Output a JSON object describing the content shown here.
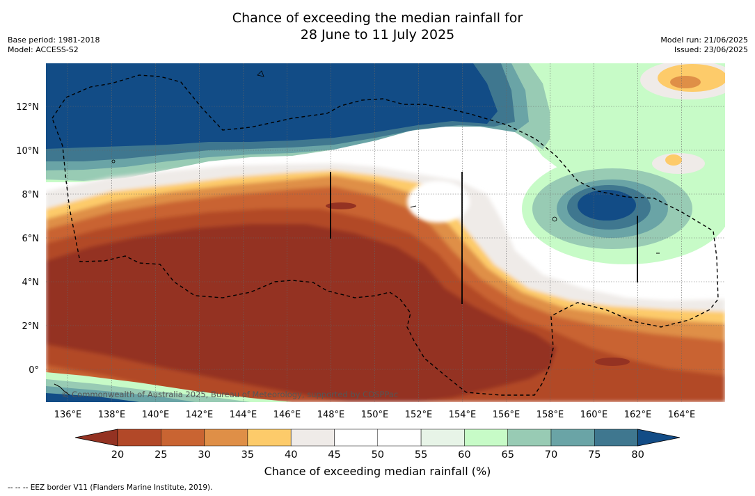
{
  "title": {
    "line1": "Chance of exceeding the median rainfall for",
    "line2": "28 June to 11 July 2025"
  },
  "meta_left": {
    "base_period": "Base period: 1981-2018",
    "model": "Model: ACCESS-S2"
  },
  "meta_right": {
    "model_run": "Model run: 21/06/2025",
    "issued": "Issued: 23/06/2025"
  },
  "map": {
    "lon_ticks": [
      "136°E",
      "138°E",
      "140°E",
      "142°E",
      "144°E",
      "146°E",
      "148°E",
      "150°E",
      "152°E",
      "154°E",
      "156°E",
      "158°E",
      "160°E",
      "162°E",
      "164°E"
    ],
    "lat_ticks": [
      "12°N",
      "10°N",
      "8°N",
      "6°N",
      "4°N",
      "2°N",
      "0°"
    ],
    "copyright": "© Commonwealth of Australia 2025, Bureau of Meteorology, supported by COSPPac"
  },
  "colorbar": {
    "ticks": [
      "20",
      "25",
      "30",
      "35",
      "40",
      "45",
      "50",
      "55",
      "60",
      "65",
      "70",
      "75",
      "80"
    ],
    "colors": [
      "#943222",
      "#b24828",
      "#c96432",
      "#df8f47",
      "#fdcb6a",
      "#efebe8",
      "#ffffff",
      "#ffffff",
      "#e7f4e7",
      "#c7fbc7",
      "#98cbb4",
      "#6aa4a6",
      "#3f778f",
      "#124c86"
    ],
    "label": "Chance of exceeding median rainfall (%)"
  },
  "footnote": "--  --  -- EEZ border V11 (Flanders Marine Institute, 2019)."
}
